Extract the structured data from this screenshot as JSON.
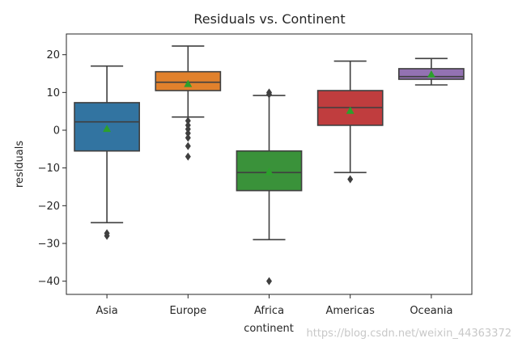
{
  "chart_data": {
    "type": "box",
    "title": "Residuals vs. Continent",
    "xlabel": "continent",
    "ylabel": "residuals",
    "ylim": [
      -43.5,
      25.5
    ],
    "yticks": [
      20,
      10,
      0,
      -10,
      -20,
      -30,
      -40
    ],
    "ytick_labels": [
      "20",
      "10",
      "0",
      "−10",
      "−20",
      "−30",
      "−40"
    ],
    "categories": [
      "Asia",
      "Europe",
      "Africa",
      "Americas",
      "Oceania"
    ],
    "colors": [
      "#3274a1",
      "#e1812c",
      "#3a923a",
      "#c03d3e",
      "#9372b2"
    ],
    "mean_marker_color": "#2ca02c",
    "grid": false,
    "boxes": [
      {
        "category": "Asia",
        "whisker_low": -24.5,
        "q1": -5.5,
        "median": 2.2,
        "q3": 7.3,
        "whisker_high": 17.0,
        "mean": 0.4,
        "outliers": [
          -27.3,
          -28.0
        ]
      },
      {
        "category": "Europe",
        "whisker_low": 3.5,
        "q1": 10.5,
        "median": 12.7,
        "q3": 15.5,
        "whisker_high": 22.3,
        "mean": 12.3,
        "outliers": [
          2.5,
          1.3,
          0.3,
          -0.8,
          -2.0,
          -4.2,
          -7.0
        ]
      },
      {
        "category": "Africa",
        "whisker_low": -29.0,
        "q1": -16.0,
        "median": -11.2,
        "q3": -5.5,
        "whisker_high": 9.2,
        "mean": -11.0,
        "outliers": [
          10.0,
          9.5,
          -40.0
        ]
      },
      {
        "category": "Americas",
        "whisker_low": -11.2,
        "q1": 1.3,
        "median": 6.0,
        "q3": 10.5,
        "whisker_high": 18.3,
        "mean": 5.2,
        "outliers": [
          -13.0
        ]
      },
      {
        "category": "Oceania",
        "whisker_low": 12.0,
        "q1": 13.5,
        "median": 14.2,
        "q3": 16.3,
        "whisker_high": 19.0,
        "mean": 14.8,
        "outliers": []
      }
    ]
  },
  "watermark": "https://blog.csdn.net/weixin_44363372"
}
